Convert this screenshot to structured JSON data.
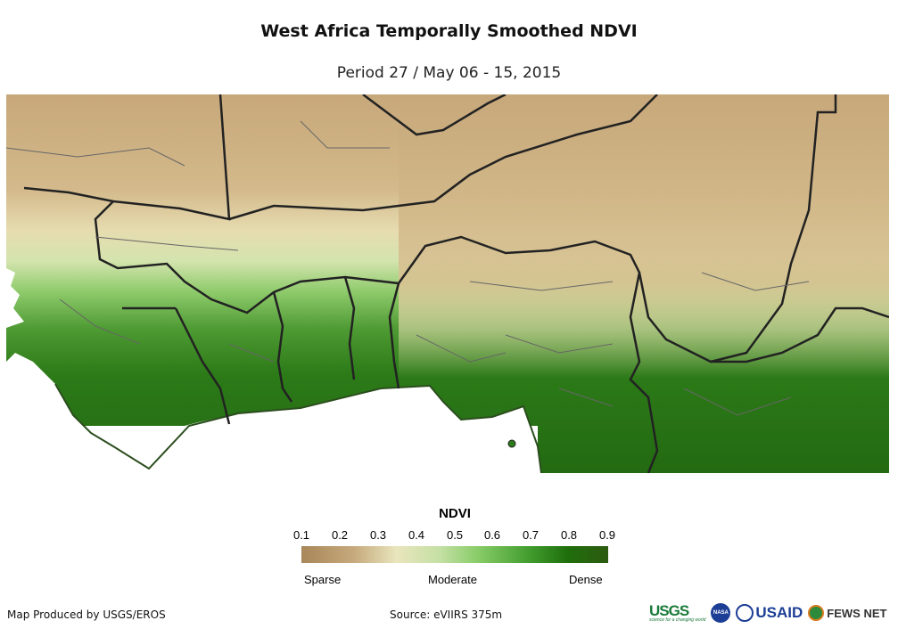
{
  "header": {
    "title": "West Africa Temporally Smoothed NDVI",
    "subtitle": "Period 27 / May 06 - 15, 2015"
  },
  "legend": {
    "title": "NDVI",
    "ticks": [
      "0.1",
      "0.2",
      "0.3",
      "0.4",
      "0.5",
      "0.6",
      "0.7",
      "0.8",
      "0.9"
    ],
    "range": [
      0.1,
      0.9
    ],
    "labels": {
      "low": "Sparse",
      "mid": "Moderate",
      "high": "Dense"
    },
    "colors": [
      "#a8875a",
      "#e9e5bd",
      "#86cb66",
      "#1f6e0c",
      "#2d5a10"
    ]
  },
  "footer": {
    "credit": "Map Produced by USGS/EROS",
    "source": "Source: eVIIRS 375m"
  },
  "logos": {
    "usgs": "USGS",
    "usgs_tagline": "science for a changing world",
    "nasa": "NASA",
    "usaid": "USAID",
    "fews": "FEWS NET"
  }
}
